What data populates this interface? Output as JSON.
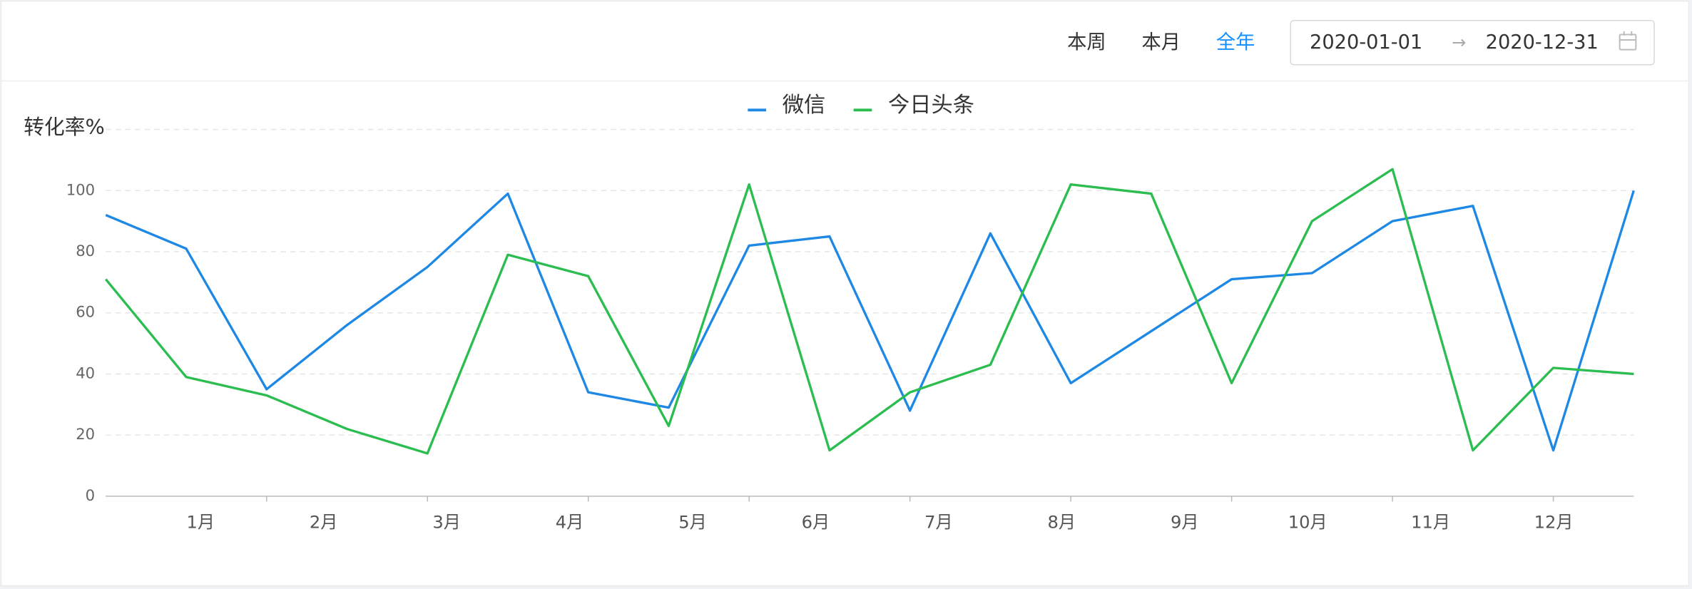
{
  "toolbar": {
    "ranges": [
      "本周",
      "本月",
      "全年"
    ],
    "active": 2,
    "start_date": "2020-01-01",
    "end_date": "2020-12-31"
  },
  "chart_data": {
    "type": "line",
    "y_axis_label": "转化率%",
    "categories": [
      null,
      null,
      null,
      null,
      null,
      null,
      null,
      null,
      null,
      null,
      null,
      null,
      null,
      null,
      null,
      null,
      null,
      null,
      null,
      null
    ],
    "month_labels": [
      "1月",
      "2月",
      "3月",
      "4月",
      "5月",
      "6月",
      "7月",
      "8月",
      "9月",
      "10月",
      "11月",
      "12月"
    ],
    "series": [
      {
        "name": "微信",
        "color": "#1e88e5",
        "values": [
          92,
          81,
          35,
          56,
          75,
          99,
          34,
          29,
          82,
          85,
          28,
          86,
          37,
          54,
          71,
          73,
          90,
          95,
          15,
          100
        ]
      },
      {
        "name": "今日头条",
        "color": "#2bbd4f",
        "values": [
          71,
          39,
          33,
          22,
          14,
          79,
          72,
          23,
          102,
          15,
          34,
          43,
          102,
          99,
          37,
          90,
          107,
          15,
          42,
          40
        ]
      }
    ],
    "ylim": [
      0,
      120
    ],
    "yticks": [
      0,
      20,
      40,
      60,
      80,
      100
    ],
    "grid": true
  }
}
